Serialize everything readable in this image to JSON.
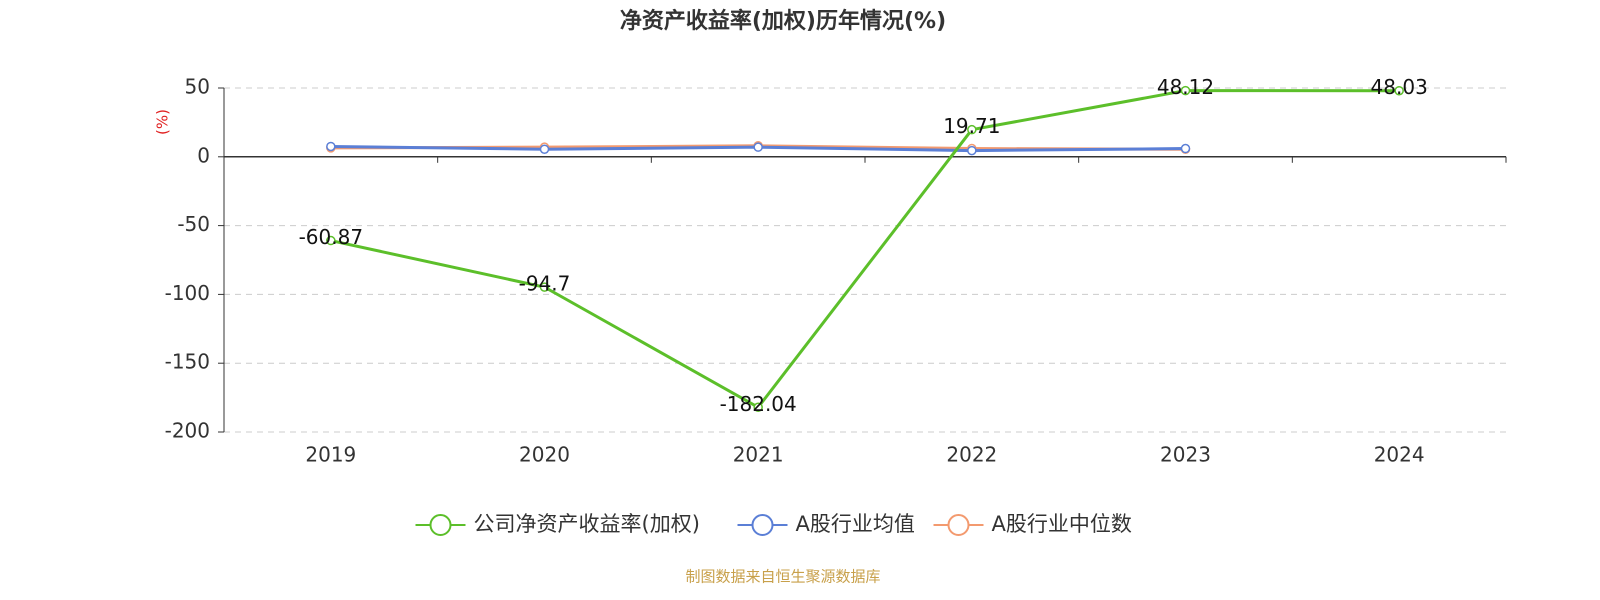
{
  "chart_data": {
    "type": "line",
    "title": "净资产收益率(加权)历年情况(%)",
    "y_label": "(%)",
    "categories": [
      "2019",
      "2020",
      "2021",
      "2022",
      "2023",
      "2024"
    ],
    "series": [
      {
        "name": "公司净资产收益率(加权)",
        "color": "#5cbf2a",
        "values": [
          -60.87,
          -94.7,
          -182.04,
          19.71,
          48.12,
          48.03
        ],
        "show_labels": true
      },
      {
        "name": "A股行业均值",
        "color": "#5b7fd6",
        "values": [
          7.5,
          5.5,
          7,
          4.5,
          6,
          null
        ]
      },
      {
        "name": "A股行业中位数",
        "color": "#f39a6f",
        "values": [
          6.5,
          7,
          8,
          6,
          5.5,
          null
        ]
      }
    ],
    "ylim": [
      -200,
      50
    ],
    "yticks": [
      -200,
      -150,
      -100,
      -50,
      0,
      50
    ],
    "grid": true,
    "source": "制图数据来自恒生聚源数据库"
  }
}
